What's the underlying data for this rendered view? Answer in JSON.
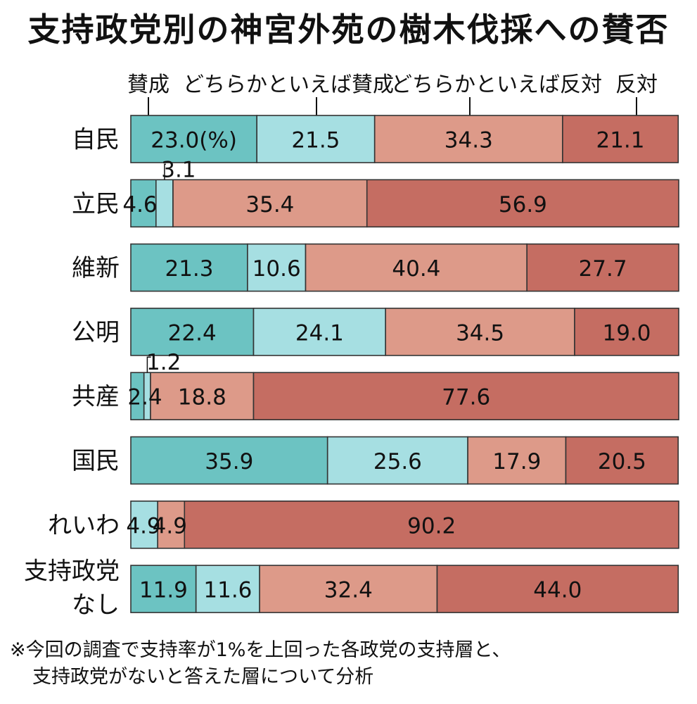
{
  "chart_data": {
    "type": "bar",
    "orientation": "horizontal",
    "stacked": true,
    "title": "支持政党別の神宮外苑の樹木伐採への賛否",
    "categories": [
      "自民",
      "立民",
      "維新",
      "公明",
      "共産",
      "国民",
      "れいわ",
      "支持政党なし"
    ],
    "series": [
      {
        "name": "賛成",
        "values": [
          23.0,
          4.6,
          21.3,
          22.4,
          2.4,
          35.9,
          0,
          11.9
        ],
        "color": "#6cc3c2"
      },
      {
        "name": "どちらかといえば賛成",
        "values": [
          21.5,
          3.1,
          10.6,
          24.1,
          1.2,
          25.6,
          4.9,
          11.6
        ],
        "color": "#a6dfe2"
      },
      {
        "name": "どちらかといえば反対",
        "values": [
          34.3,
          35.4,
          40.4,
          34.5,
          18.8,
          17.9,
          4.9,
          32.4
        ],
        "color": "#dd9a89"
      },
      {
        "name": "反対",
        "values": [
          21.1,
          56.9,
          27.7,
          19.0,
          77.6,
          20.5,
          90.2,
          44.0
        ],
        "color": "#c56d62"
      }
    ],
    "labels": [
      [
        "23.0(%)",
        "21.5",
        "34.3",
        "21.1"
      ],
      [
        "4.6",
        "3.1",
        "35.4",
        "56.9"
      ],
      [
        "21.3",
        "10.6",
        "40.4",
        "27.7"
      ],
      [
        "22.4",
        "24.1",
        "34.5",
        "19.0"
      ],
      [
        "2.4",
        "1.2",
        "18.8",
        "77.6"
      ],
      [
        "35.9",
        "25.6",
        "17.9",
        "20.5"
      ],
      [
        "",
        "4.9",
        "4.9",
        "90.2"
      ],
      [
        "11.9",
        "11.6",
        "32.4",
        "44.0"
      ]
    ],
    "category_lines": [
      [
        "自民"
      ],
      [
        "立民"
      ],
      [
        "維新"
      ],
      [
        "公明"
      ],
      [
        "共産"
      ],
      [
        "国民"
      ],
      [
        "れいわ"
      ],
      [
        "支持政党",
        "なし"
      ]
    ],
    "xlim": [
      0,
      100
    ],
    "legend_position": "top",
    "unit": "%"
  },
  "footnote": {
    "line1": "※今回の調査で支持率が1%を上回った各政党の支持層と、",
    "line2": "支持政党がないと答えた層について分析"
  }
}
